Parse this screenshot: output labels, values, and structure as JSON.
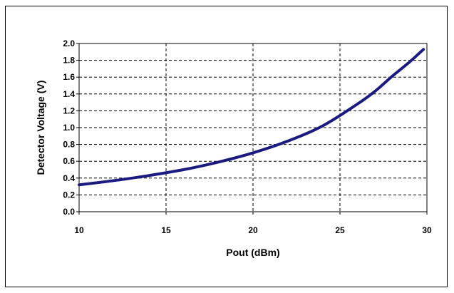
{
  "chart_data": {
    "type": "line",
    "title": "",
    "xlabel": "Pout (dBm)",
    "ylabel": "Detector Voltage (V)",
    "xlim": [
      10,
      30
    ],
    "ylim": [
      0,
      2.0
    ],
    "x_ticks": [
      "10",
      "15",
      "20",
      "25",
      "30"
    ],
    "y_ticks": [
      "0.0",
      "0.2",
      "0.4",
      "0.6",
      "0.8",
      "1.0",
      "1.2",
      "1.4",
      "1.6",
      "1.8",
      "2.0"
    ],
    "grid": true,
    "grid_style": "dashed",
    "line_color": "#1a1a80",
    "series": [
      {
        "x": [
          10,
          12,
          14,
          16,
          18,
          20,
          22,
          24,
          26,
          27,
          28,
          29,
          29.8
        ],
        "y": [
          0.32,
          0.37,
          0.43,
          0.5,
          0.59,
          0.7,
          0.84,
          1.02,
          1.28,
          1.43,
          1.61,
          1.78,
          1.93
        ]
      }
    ]
  }
}
